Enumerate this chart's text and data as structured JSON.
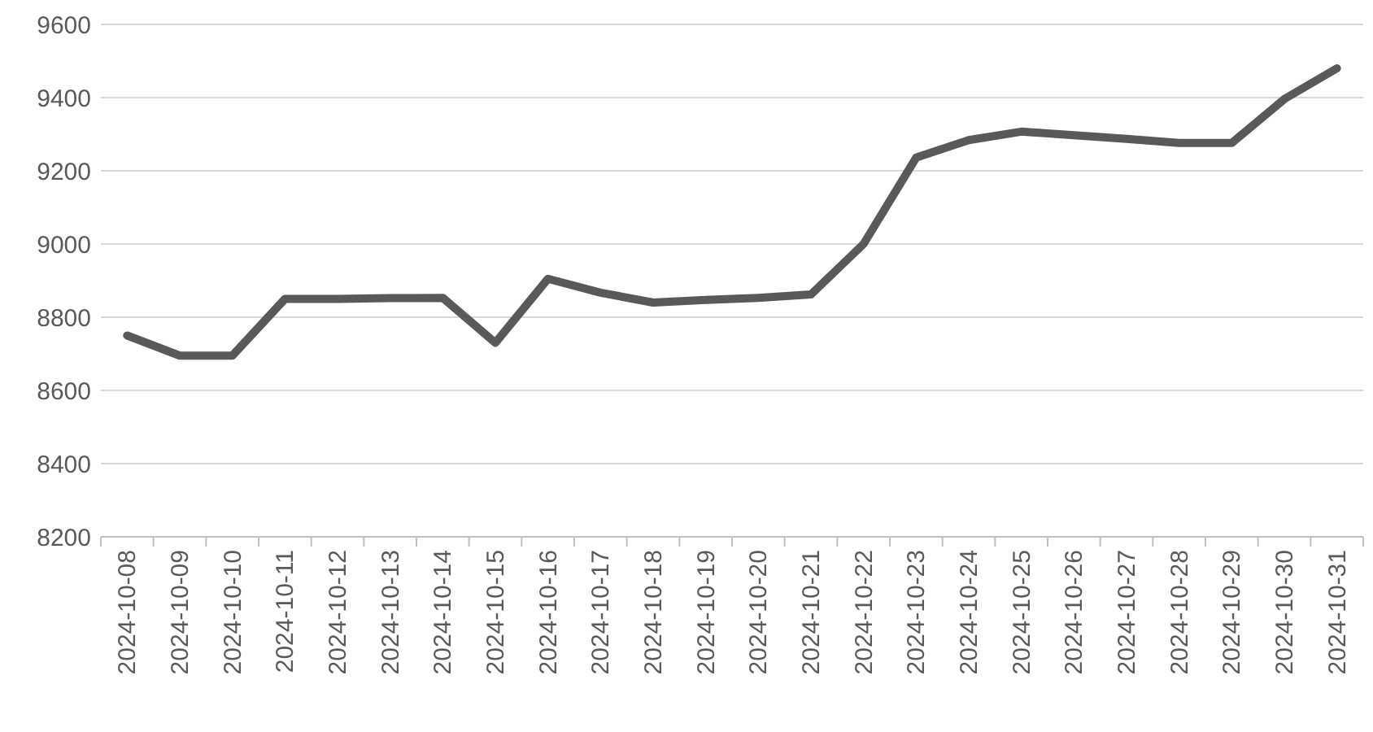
{
  "chart_data": {
    "type": "line",
    "categories": [
      "2024-10-08",
      "2024-10-09",
      "2024-10-10",
      "2024-10-11",
      "2024-10-12",
      "2024-10-13",
      "2024-10-14",
      "2024-10-15",
      "2024-10-16",
      "2024-10-17",
      "2024-10-18",
      "2024-10-19",
      "2024-10-20",
      "2024-10-21",
      "2024-10-22",
      "2024-10-23",
      "2024-10-24",
      "2024-10-25",
      "2024-10-26",
      "2024-10-27",
      "2024-10-28",
      "2024-10-29",
      "2024-10-30",
      "2024-10-31"
    ],
    "series": [
      {
        "color": "#595959",
        "values": [
          8750,
          8695,
          8695,
          8850,
          8850,
          8852,
          8853,
          8730,
          8905,
          8867,
          8840,
          8847,
          8853,
          8862,
          9000,
          9236,
          9284,
          9307,
          9297,
          9287,
          9276,
          9276,
          9396,
          9480
        ]
      }
    ],
    "ylim": [
      8200,
      9600
    ],
    "yticks": [
      8200,
      8400,
      8600,
      8800,
      9000,
      9200,
      9400,
      9600
    ],
    "grid": "y",
    "marker": "none",
    "line_style": "solid"
  }
}
